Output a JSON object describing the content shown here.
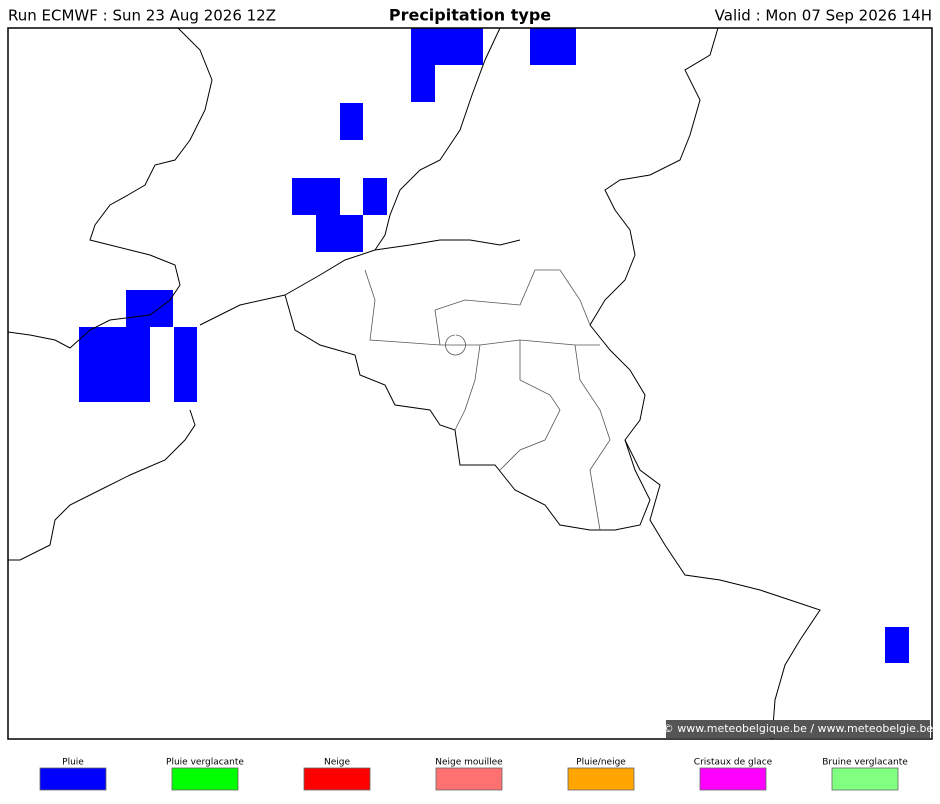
{
  "header": {
    "run": "Run ECMWF : Sun 23 Aug 2026 12Z",
    "title": "Precipitation type",
    "valid": "Valid : Mon 07 Sep 2026 14H"
  },
  "credit": "© www.meteobelgique.be / www.meteobelgie.be",
  "legend": [
    {
      "label": "Pluie",
      "color": "#0000ff"
    },
    {
      "label": "Pluie verglacante",
      "color": "#00ff00"
    },
    {
      "label": "Neige",
      "color": "#ff0000"
    },
    {
      "label": "Neige mouillee",
      "color": "#ff7070"
    },
    {
      "label": "Pluie/neige",
      "color": "#ffa500"
    },
    {
      "label": "Cristaux de glace",
      "color": "#ff00ff"
    },
    {
      "label": "Bruine verglacante",
      "color": "#80ff80"
    }
  ]
}
